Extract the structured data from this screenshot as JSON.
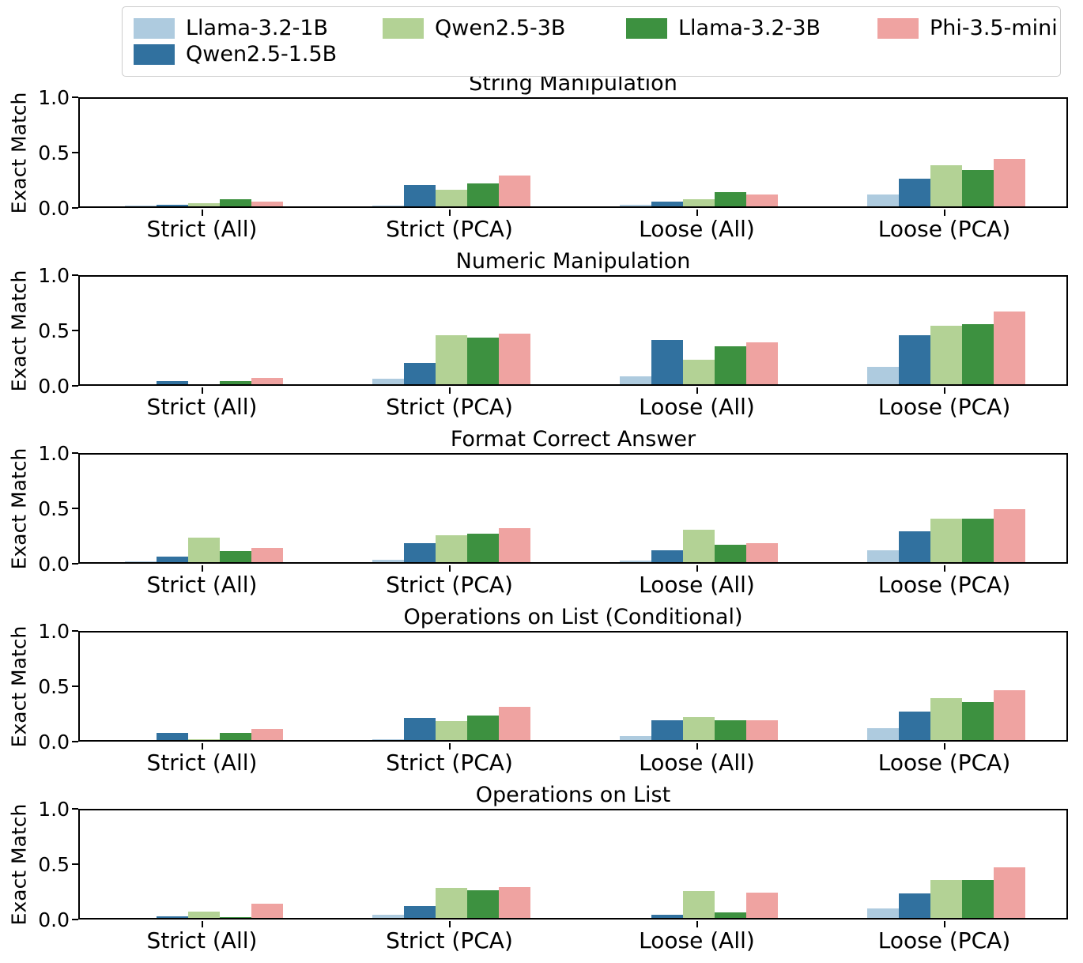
{
  "legend": {
    "items": [
      {
        "label": "Llama-3.2-1B",
        "color": "#aecbdf"
      },
      {
        "label": "Qwen2.5-1.5B",
        "color": "#31719f"
      },
      {
        "label": "Qwen2.5-3B",
        "color": "#b3d295"
      },
      {
        "label": "Llama-3.2-3B",
        "color": "#3d9140"
      },
      {
        "label": "Phi-3.5-mini",
        "color": "#efa3a1"
      }
    ]
  },
  "chart_data": [
    {
      "type": "bar",
      "title": "String Manipulation",
      "ylabel": "Exact Match",
      "ylim": [
        0.0,
        1.0
      ],
      "yticks": [
        "0.0",
        "0.5",
        "1.0"
      ],
      "categories": [
        "Strict (All)",
        "Strict (PCA)",
        "Loose (All)",
        "Loose (PCA)"
      ],
      "series": [
        {
          "name": "Llama-3.2-1B",
          "color": "#aecbdf",
          "values": [
            0.005,
            0.01,
            0.012,
            0.105
          ]
        },
        {
          "name": "Qwen2.5-1.5B",
          "color": "#31719f",
          "values": [
            0.012,
            0.19,
            0.04,
            0.25
          ]
        },
        {
          "name": "Qwen2.5-3B",
          "color": "#b3d295",
          "values": [
            0.025,
            0.15,
            0.065,
            0.37
          ]
        },
        {
          "name": "Llama-3.2-3B",
          "color": "#3d9140",
          "values": [
            0.065,
            0.21,
            0.13,
            0.33
          ]
        },
        {
          "name": "Phi-3.5-mini",
          "color": "#efa3a1",
          "values": [
            0.045,
            0.28,
            0.105,
            0.43
          ]
        }
      ]
    },
    {
      "type": "bar",
      "title": "Numeric Manipulation",
      "ylabel": "Exact Match",
      "ylim": [
        0.0,
        1.0
      ],
      "yticks": [
        "0.0",
        "0.5",
        "1.0"
      ],
      "categories": [
        "Strict (All)",
        "Strict (PCA)",
        "Loose (All)",
        "Loose (PCA)"
      ],
      "series": [
        {
          "name": "Llama-3.2-1B",
          "color": "#aecbdf",
          "values": [
            0.0,
            0.05,
            0.07,
            0.16
          ]
        },
        {
          "name": "Qwen2.5-1.5B",
          "color": "#31719f",
          "values": [
            0.025,
            0.19,
            0.4,
            0.44
          ]
        },
        {
          "name": "Qwen2.5-3B",
          "color": "#b3d295",
          "values": [
            0.0,
            0.44,
            0.22,
            0.53
          ]
        },
        {
          "name": "Llama-3.2-3B",
          "color": "#3d9140",
          "values": [
            0.025,
            0.42,
            0.34,
            0.54
          ]
        },
        {
          "name": "Phi-3.5-mini",
          "color": "#efa3a1",
          "values": [
            0.06,
            0.46,
            0.38,
            0.66
          ]
        }
      ]
    },
    {
      "type": "bar",
      "title": "Format Correct Answer",
      "ylabel": "Exact Match",
      "ylim": [
        0.0,
        1.0
      ],
      "yticks": [
        "0.0",
        "0.5",
        "1.0"
      ],
      "categories": [
        "Strict (All)",
        "Strict (PCA)",
        "Loose (All)",
        "Loose (PCA)"
      ],
      "series": [
        {
          "name": "Llama-3.2-1B",
          "color": "#aecbdf",
          "values": [
            0.005,
            0.02,
            0.012,
            0.11
          ]
        },
        {
          "name": "Qwen2.5-1.5B",
          "color": "#31719f",
          "values": [
            0.05,
            0.17,
            0.105,
            0.28
          ]
        },
        {
          "name": "Qwen2.5-3B",
          "color": "#b3d295",
          "values": [
            0.22,
            0.24,
            0.29,
            0.39
          ]
        },
        {
          "name": "Llama-3.2-3B",
          "color": "#3d9140",
          "values": [
            0.1,
            0.26,
            0.16,
            0.39
          ]
        },
        {
          "name": "Phi-3.5-mini",
          "color": "#efa3a1",
          "values": [
            0.13,
            0.31,
            0.17,
            0.48
          ]
        }
      ]
    },
    {
      "type": "bar",
      "title": "Operations on List (Conditional)",
      "ylabel": "Exact Match",
      "ylim": [
        0.0,
        1.0
      ],
      "yticks": [
        "0.0",
        "0.5",
        "1.0"
      ],
      "categories": [
        "Strict (All)",
        "Strict (PCA)",
        "Loose (All)",
        "Loose (PCA)"
      ],
      "series": [
        {
          "name": "Llama-3.2-1B",
          "color": "#aecbdf",
          "values": [
            0.0,
            0.01,
            0.035,
            0.11
          ]
        },
        {
          "name": "Qwen2.5-1.5B",
          "color": "#31719f",
          "values": [
            0.065,
            0.2,
            0.18,
            0.26
          ]
        },
        {
          "name": "Qwen2.5-3B",
          "color": "#b3d295",
          "values": [
            0.01,
            0.17,
            0.21,
            0.38
          ]
        },
        {
          "name": "Llama-3.2-3B",
          "color": "#3d9140",
          "values": [
            0.065,
            0.22,
            0.18,
            0.34
          ]
        },
        {
          "name": "Phi-3.5-mini",
          "color": "#efa3a1",
          "values": [
            0.1,
            0.3,
            0.18,
            0.45
          ]
        }
      ]
    },
    {
      "type": "bar",
      "title": "Operations on List",
      "ylabel": "Exact Match",
      "ylim": [
        0.0,
        1.0
      ],
      "yticks": [
        "0.0",
        "0.5",
        "1.0"
      ],
      "categories": [
        "Strict (All)",
        "Strict (PCA)",
        "Loose (All)",
        "Loose (PCA)"
      ],
      "series": [
        {
          "name": "Llama-3.2-1B",
          "color": "#aecbdf",
          "values": [
            0.0,
            0.025,
            0.0,
            0.085
          ]
        },
        {
          "name": "Qwen2.5-1.5B",
          "color": "#31719f",
          "values": [
            0.012,
            0.11,
            0.025,
            0.22
          ]
        },
        {
          "name": "Qwen2.5-3B",
          "color": "#b3d295",
          "values": [
            0.06,
            0.27,
            0.24,
            0.34
          ]
        },
        {
          "name": "Llama-3.2-3B",
          "color": "#3d9140",
          "values": [
            0.01,
            0.25,
            0.05,
            0.34
          ]
        },
        {
          "name": "Phi-3.5-mini",
          "color": "#efa3a1",
          "values": [
            0.13,
            0.28,
            0.23,
            0.46
          ]
        }
      ]
    }
  ]
}
